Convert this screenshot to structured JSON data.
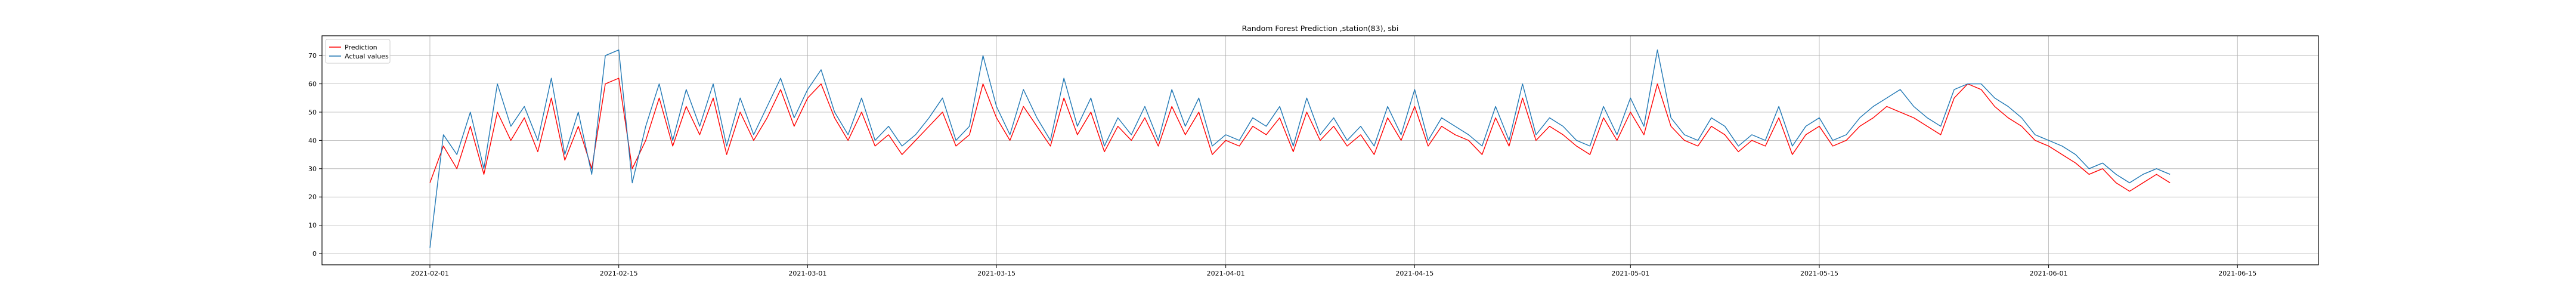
{
  "chart_data": {
    "type": "line",
    "title": "Random Forest Prediction ,station(83), sbi",
    "xlabel": "",
    "ylabel": "",
    "x_tick_labels": [
      "2021-02-01",
      "2021-02-15",
      "2021-03-01",
      "2021-03-15",
      "2021-04-01",
      "2021-04-15",
      "2021-05-01",
      "2021-05-15",
      "2021-06-01",
      "2021-06-15"
    ],
    "y_ticks": [
      0,
      10,
      20,
      30,
      40,
      50,
      60,
      70
    ],
    "xlim": [
      "2021-01-24",
      "2021-06-21"
    ],
    "ylim": [
      -4,
      77
    ],
    "grid": true,
    "legend_placement": "top-left",
    "series": [
      {
        "name": "Prediction",
        "color": "#ff0000",
        "x": [
          "2021-02-01",
          "2021-02-02",
          "2021-02-03",
          "2021-02-04",
          "2021-02-05",
          "2021-02-06",
          "2021-02-07",
          "2021-02-08",
          "2021-02-09",
          "2021-02-10",
          "2021-02-11",
          "2021-02-12",
          "2021-02-13",
          "2021-02-14",
          "2021-02-15",
          "2021-02-16",
          "2021-02-17",
          "2021-02-18",
          "2021-02-19",
          "2021-02-20",
          "2021-02-21",
          "2021-02-22",
          "2021-02-23",
          "2021-02-24",
          "2021-02-25",
          "2021-02-26",
          "2021-02-27",
          "2021-02-28",
          "2021-03-01",
          "2021-03-02",
          "2021-03-03",
          "2021-03-04",
          "2021-03-05",
          "2021-03-06",
          "2021-03-07",
          "2021-03-08",
          "2021-03-09",
          "2021-03-10",
          "2021-03-11",
          "2021-03-12",
          "2021-03-13",
          "2021-03-14",
          "2021-03-15",
          "2021-03-16",
          "2021-03-17",
          "2021-03-18",
          "2021-03-19",
          "2021-03-20",
          "2021-03-21",
          "2021-03-22",
          "2021-03-23",
          "2021-03-24",
          "2021-03-25",
          "2021-03-26",
          "2021-03-27",
          "2021-03-28",
          "2021-03-29",
          "2021-03-30",
          "2021-03-31",
          "2021-04-01",
          "2021-04-02",
          "2021-04-03",
          "2021-04-04",
          "2021-04-05",
          "2021-04-06",
          "2021-04-07",
          "2021-04-08",
          "2021-04-09",
          "2021-04-10",
          "2021-04-11",
          "2021-04-12",
          "2021-04-13",
          "2021-04-14",
          "2021-04-15",
          "2021-04-16",
          "2021-04-17",
          "2021-04-18",
          "2021-04-19",
          "2021-04-20",
          "2021-04-21",
          "2021-04-22",
          "2021-04-23",
          "2021-04-24",
          "2021-04-25",
          "2021-04-26",
          "2021-04-27",
          "2021-04-28",
          "2021-04-29",
          "2021-04-30",
          "2021-05-01",
          "2021-05-02",
          "2021-05-03",
          "2021-05-04",
          "2021-05-05",
          "2021-05-06",
          "2021-05-07",
          "2021-05-08",
          "2021-05-09",
          "2021-05-10",
          "2021-05-11",
          "2021-05-12",
          "2021-05-13",
          "2021-05-14",
          "2021-05-15",
          "2021-05-16",
          "2021-05-17",
          "2021-05-18",
          "2021-05-19",
          "2021-05-20",
          "2021-05-21",
          "2021-05-22",
          "2021-05-23",
          "2021-05-24",
          "2021-05-25",
          "2021-05-26",
          "2021-05-27",
          "2021-05-28",
          "2021-05-29",
          "2021-05-30",
          "2021-05-31",
          "2021-06-01",
          "2021-06-02",
          "2021-06-03",
          "2021-06-04",
          "2021-06-05",
          "2021-06-06",
          "2021-06-07",
          "2021-06-08",
          "2021-06-09",
          "2021-06-10"
        ],
        "values": [
          25,
          38,
          30,
          45,
          28,
          50,
          40,
          48,
          36,
          55,
          33,
          45,
          30,
          60,
          62,
          30,
          40,
          55,
          38,
          52,
          42,
          55,
          35,
          50,
          40,
          48,
          58,
          45,
          55,
          60,
          48,
          40,
          50,
          38,
          42,
          35,
          40,
          45,
          50,
          38,
          42,
          60,
          48,
          40,
          52,
          45,
          38,
          55,
          42,
          50,
          36,
          45,
          40,
          48,
          38,
          52,
          42,
          50,
          35,
          40,
          38,
          45,
          42,
          48,
          36,
          50,
          40,
          45,
          38,
          42,
          35,
          48,
          40,
          52,
          38,
          45,
          42,
          40,
          35,
          48,
          38,
          55,
          40,
          45,
          42,
          38,
          35,
          48,
          40,
          50,
          42,
          60,
          45,
          40,
          38,
          45,
          42,
          36,
          40,
          38,
          48,
          35,
          42,
          45,
          38,
          40,
          45,
          48,
          52,
          50,
          48,
          45,
          42,
          55,
          60,
          58,
          52,
          48,
          45,
          40,
          38,
          35,
          32,
          28,
          30,
          25,
          22,
          25,
          28,
          25
        ]
      },
      {
        "name": "Actual values",
        "color": "#1f77b4",
        "x": [
          "2021-02-01",
          "2021-02-02",
          "2021-02-03",
          "2021-02-04",
          "2021-02-05",
          "2021-02-06",
          "2021-02-07",
          "2021-02-08",
          "2021-02-09",
          "2021-02-10",
          "2021-02-11",
          "2021-02-12",
          "2021-02-13",
          "2021-02-14",
          "2021-02-15",
          "2021-02-16",
          "2021-02-17",
          "2021-02-18",
          "2021-02-19",
          "2021-02-20",
          "2021-02-21",
          "2021-02-22",
          "2021-02-23",
          "2021-02-24",
          "2021-02-25",
          "2021-02-26",
          "2021-02-27",
          "2021-02-28",
          "2021-03-01",
          "2021-03-02",
          "2021-03-03",
          "2021-03-04",
          "2021-03-05",
          "2021-03-06",
          "2021-03-07",
          "2021-03-08",
          "2021-03-09",
          "2021-03-10",
          "2021-03-11",
          "2021-03-12",
          "2021-03-13",
          "2021-03-14",
          "2021-03-15",
          "2021-03-16",
          "2021-03-17",
          "2021-03-18",
          "2021-03-19",
          "2021-03-20",
          "2021-03-21",
          "2021-03-22",
          "2021-03-23",
          "2021-03-24",
          "2021-03-25",
          "2021-03-26",
          "2021-03-27",
          "2021-03-28",
          "2021-03-29",
          "2021-03-30",
          "2021-03-31",
          "2021-04-01",
          "2021-04-02",
          "2021-04-03",
          "2021-04-04",
          "2021-04-05",
          "2021-04-06",
          "2021-04-07",
          "2021-04-08",
          "2021-04-09",
          "2021-04-10",
          "2021-04-11",
          "2021-04-12",
          "2021-04-13",
          "2021-04-14",
          "2021-04-15",
          "2021-04-16",
          "2021-04-17",
          "2021-04-18",
          "2021-04-19",
          "2021-04-20",
          "2021-04-21",
          "2021-04-22",
          "2021-04-23",
          "2021-04-24",
          "2021-04-25",
          "2021-04-26",
          "2021-04-27",
          "2021-04-28",
          "2021-04-29",
          "2021-04-30",
          "2021-05-01",
          "2021-05-02",
          "2021-05-03",
          "2021-05-04",
          "2021-05-05",
          "2021-05-06",
          "2021-05-07",
          "2021-05-08",
          "2021-05-09",
          "2021-05-10",
          "2021-05-11",
          "2021-05-12",
          "2021-05-13",
          "2021-05-14",
          "2021-05-15",
          "2021-05-16",
          "2021-05-17",
          "2021-05-18",
          "2021-05-19",
          "2021-05-20",
          "2021-05-21",
          "2021-05-22",
          "2021-05-23",
          "2021-05-24",
          "2021-05-25",
          "2021-05-26",
          "2021-05-27",
          "2021-05-28",
          "2021-05-29",
          "2021-05-30",
          "2021-05-31",
          "2021-06-01",
          "2021-06-02",
          "2021-06-03",
          "2021-06-04",
          "2021-06-05",
          "2021-06-06",
          "2021-06-07",
          "2021-06-08",
          "2021-06-09",
          "2021-06-10"
        ],
        "values": [
          2,
          42,
          35,
          50,
          30,
          60,
          45,
          52,
          40,
          62,
          35,
          50,
          28,
          70,
          72,
          25,
          45,
          60,
          40,
          58,
          45,
          60,
          38,
          55,
          42,
          52,
          62,
          48,
          58,
          65,
          50,
          42,
          55,
          40,
          45,
          38,
          42,
          48,
          55,
          40,
          45,
          70,
          52,
          42,
          58,
          48,
          40,
          62,
          45,
          55,
          38,
          48,
          42,
          52,
          40,
          58,
          45,
          55,
          38,
          42,
          40,
          48,
          45,
          52,
          38,
          55,
          42,
          48,
          40,
          45,
          38,
          52,
          42,
          58,
          40,
          48,
          45,
          42,
          38,
          52,
          40,
          60,
          42,
          48,
          45,
          40,
          38,
          52,
          42,
          55,
          45,
          72,
          48,
          42,
          40,
          48,
          45,
          38,
          42,
          40,
          52,
          38,
          45,
          48,
          40,
          42,
          48,
          52,
          55,
          58,
          52,
          48,
          45,
          58,
          60,
          60,
          55,
          52,
          48,
          42,
          40,
          38,
          35,
          30,
          32,
          28,
          25,
          28,
          30,
          28
        ]
      }
    ]
  }
}
